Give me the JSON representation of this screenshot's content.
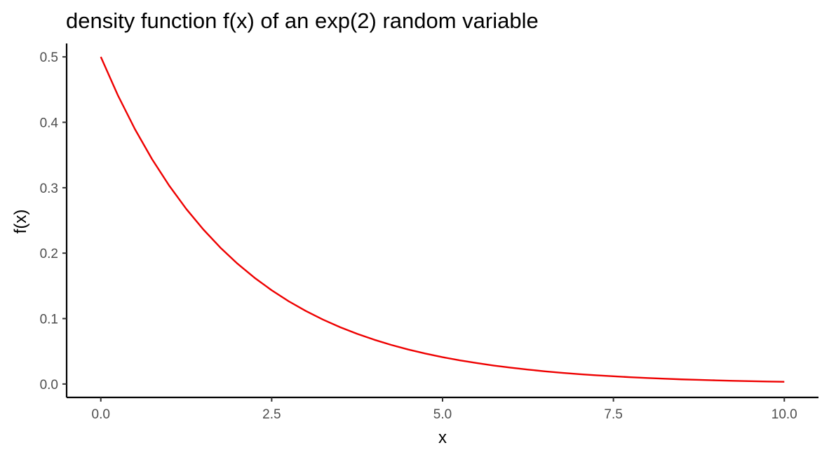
{
  "chart_data": {
    "type": "line",
    "title": "density function f(x) of an exp(2) random variable",
    "xlabel": "x",
    "ylabel": "f(x)",
    "xlim": [
      -0.5,
      10.5
    ],
    "ylim": [
      -0.0205,
      0.5205
    ],
    "x_ticks": [
      0,
      2.5,
      5,
      7.5,
      10
    ],
    "x_tick_labels": [
      "0.0",
      "2.5",
      "5.0",
      "7.5",
      "10.0"
    ],
    "y_ticks": [
      0,
      0.1,
      0.2,
      0.3,
      0.4,
      0.5
    ],
    "y_tick_labels": [
      "0.0",
      "0.1",
      "0.2",
      "0.3",
      "0.4",
      "0.5"
    ],
    "grid": false,
    "legend": "none",
    "series": [
      {
        "color": "#ee0000",
        "x": [
          0,
          0.25,
          0.5,
          0.75,
          1,
          1.25,
          1.5,
          1.75,
          2,
          2.25,
          2.5,
          2.75,
          3,
          3.25,
          3.5,
          3.75,
          4,
          4.25,
          4.5,
          4.75,
          5,
          5.25,
          5.5,
          5.75,
          6,
          6.25,
          6.5,
          6.75,
          7,
          7.25,
          7.5,
          7.75,
          8,
          8.25,
          8.5,
          8.75,
          9,
          9.25,
          9.5,
          9.75,
          10
        ],
        "y": [
          0.5,
          0.4412,
          0.3894,
          0.3436,
          0.3033,
          0.2676,
          0.2362,
          0.2084,
          0.1839,
          0.1623,
          0.1433,
          0.1264,
          0.1116,
          0.0985,
          0.0869,
          0.0767,
          0.0677,
          0.0597,
          0.0527,
          0.0465,
          0.041,
          0.0362,
          0.032,
          0.0282,
          0.0249,
          0.022,
          0.0194,
          0.0171,
          0.0151,
          0.0133,
          0.0118,
          0.0104,
          0.0092,
          0.0081,
          0.0071,
          0.0063,
          0.0056,
          0.0049,
          0.0043,
          0.0038,
          0.0034
        ]
      }
    ]
  }
}
